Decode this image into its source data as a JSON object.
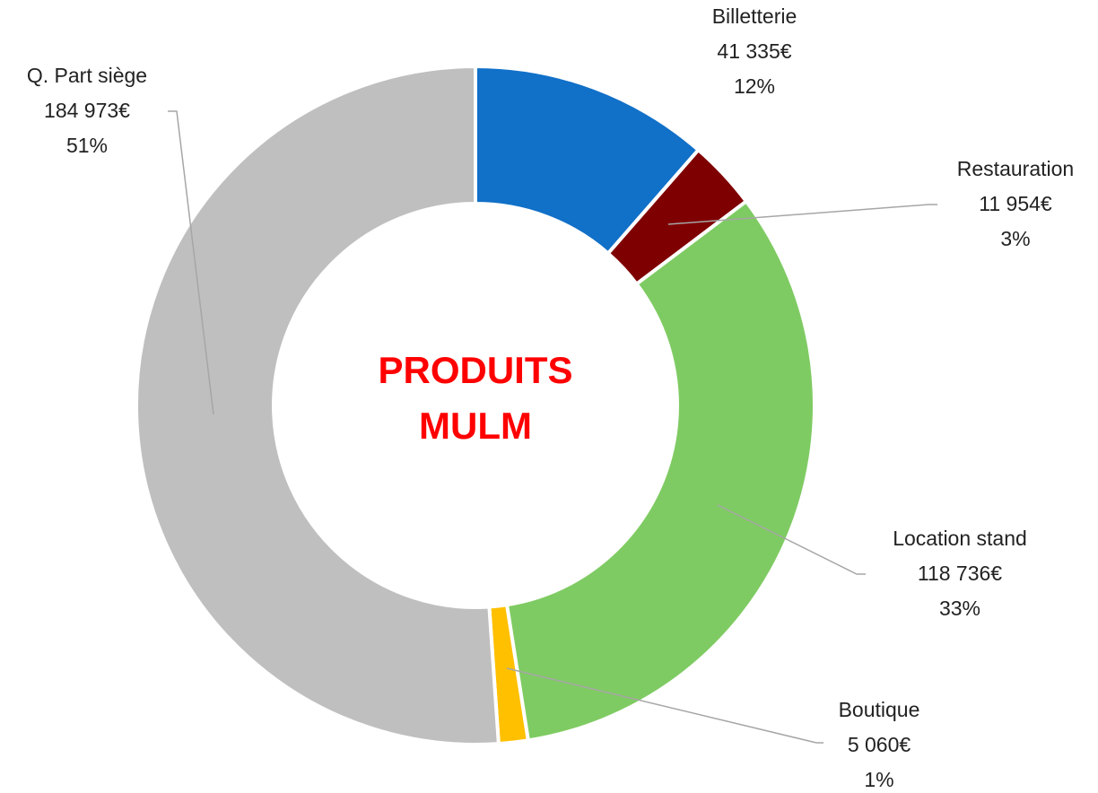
{
  "chart_data": {
    "type": "donut",
    "title": "PRODUITS MULM",
    "categories": [
      "Billetterie",
      "Restauration",
      "Location stand",
      "Boutique",
      "Q. Part siège"
    ],
    "values": [
      41335,
      11954,
      118736,
      5060,
      184973
    ],
    "value_labels": [
      "41 335€",
      "11 954€",
      "118 736€",
      "5 060€",
      "184 973€"
    ],
    "percent_labels": [
      "12%",
      "3%",
      "33%",
      "1%",
      "51%"
    ],
    "colors": [
      "#1170c8",
      "#7f0000",
      "#7fcb63",
      "#ffc000",
      "#bfbfbf"
    ]
  }
}
